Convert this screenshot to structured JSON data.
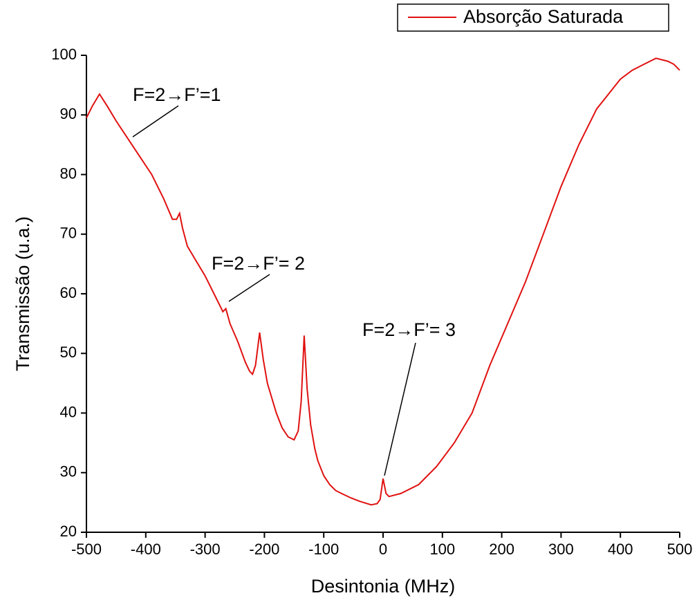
{
  "chart_data": {
    "type": "line",
    "xlabel": "Desintonia (MHz)",
    "ylabel": "Transmissão (u.a.)",
    "x": [
      -500,
      -490,
      -478,
      -465,
      -450,
      -430,
      -410,
      -390,
      -370,
      -355,
      -348,
      -343,
      -338,
      -330,
      -315,
      -300,
      -285,
      -275,
      -270,
      -265,
      -258,
      -245,
      -232,
      -225,
      -220,
      -215,
      -208,
      -202,
      -195,
      -180,
      -170,
      -160,
      -150,
      -143,
      -138,
      -133,
      -128,
      -122,
      -115,
      -110,
      -100,
      -90,
      -80,
      -70,
      -55,
      -40,
      -20,
      -10,
      -5,
      0,
      5,
      10,
      30,
      60,
      90,
      120,
      150,
      180,
      210,
      240,
      270,
      300,
      330,
      360,
      380,
      400,
      420,
      440,
      460,
      480,
      490,
      500
    ],
    "series": [
      {
        "name": "Absorção Saturada",
        "color": "#e01010",
        "values": [
          89.5,
          91.5,
          93.5,
          91.5,
          89,
          86,
          83,
          80,
          76,
          72.5,
          72.5,
          73.5,
          71,
          68,
          65.5,
          63,
          60,
          58,
          57,
          57.5,
          55,
          52,
          48.5,
          47,
          46.5,
          48,
          53.5,
          49,
          45,
          40,
          37.5,
          36,
          35.5,
          37,
          42,
          53,
          44,
          38,
          34,
          32,
          29.5,
          28,
          27,
          26.5,
          25.8,
          25.2,
          24.6,
          24.8,
          25.5,
          29,
          26.5,
          26,
          26.5,
          28,
          31,
          35,
          40,
          48,
          55,
          62,
          70,
          78,
          85,
          91,
          93.5,
          96,
          97.5,
          98.5,
          99.5,
          99,
          98.5,
          97.5
        ]
      }
    ],
    "xlim": [
      -500,
      500
    ],
    "xticks": [
      -500,
      -400,
      -300,
      -200,
      -100,
      0,
      100,
      200,
      300,
      400,
      500
    ],
    "ylim": [
      20,
      100
    ],
    "yticks": [
      20,
      30,
      40,
      50,
      60,
      70,
      80,
      90,
      100
    ],
    "annotations": [
      "F=2→F’=1",
      "F=2→F’= 2",
      "F=2→F’= 3"
    ],
    "legend": "top-right",
    "grid": false
  }
}
